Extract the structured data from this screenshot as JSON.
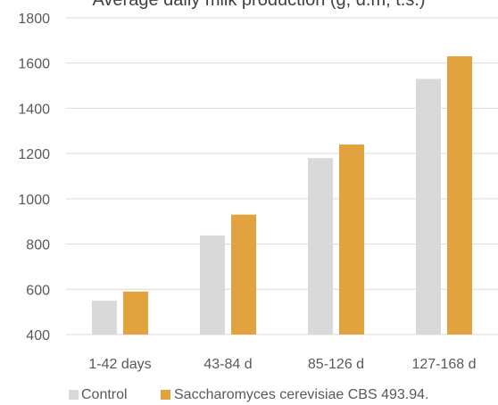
{
  "chart_data": {
    "type": "bar",
    "title": "Average daily milk production (g, d.m, t.s.)",
    "xlabel": "",
    "ylabel": "",
    "categories": [
      "1-42 days",
      "43-84 d",
      "85-126 d",
      "127-168 d"
    ],
    "series": [
      {
        "name": "Control",
        "values": [
          550,
          838,
          1180,
          1530
        ],
        "color": "#d9d9d9"
      },
      {
        "name": "Saccharomyces cerevisiae CBS 493.94.",
        "values": [
          590,
          930,
          1240,
          1630
        ],
        "color": "#e2a33e"
      }
    ],
    "ylim": [
      400,
      1800
    ],
    "yticks": [
      400,
      600,
      800,
      1000,
      1200,
      1400,
      1600,
      1800
    ],
    "grid": true,
    "legend": "bottom"
  },
  "colors": {
    "grid": "#d9d9d9",
    "tick_text": "#595959"
  }
}
